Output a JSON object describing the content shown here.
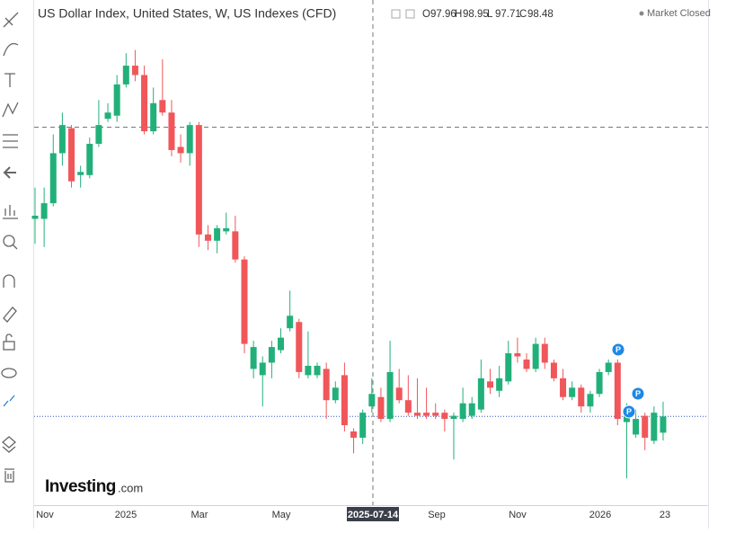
{
  "chart_data": {
    "type": "candlestick",
    "title": "US Dollar Index, United States, W, US Indexes (CFD)",
    "ohlc_labels": [
      "O",
      "H",
      "L",
      "C"
    ],
    "status": "Market Closed",
    "watermark": "Investing",
    "watermark_suffix": ".com",
    "crosshair_label": "2025-07-14",
    "x_labels": [
      "Nov",
      "2025",
      "Mar",
      "May",
      "Sep",
      "Nov",
      "2026",
      "23"
    ],
    "event_labels": [
      "P",
      "P",
      "P"
    ],
    "up_color": "#22b07a",
    "down_color": "#f0565a",
    "ylim": [
      95.7,
      111.8
    ],
    "open": [
      104.8,
      104.8,
      105.3,
      106.9,
      107.7,
      106.2,
      106.2,
      107.2,
      108.0,
      108.1,
      109.1,
      109.7,
      109.4,
      107.6,
      108.6,
      108.2,
      107.1,
      106.9,
      107.8,
      104.3,
      104.1,
      104.4,
      104.4,
      103.5,
      100.0,
      99.8,
      100.2,
      100.6,
      101.3,
      101.5,
      99.8,
      99.8,
      100.0,
      99.0,
      99.8,
      98.0,
      97.8,
      98.8,
      99.1,
      98.4,
      99.4,
      99.0,
      98.6,
      98.6,
      98.6,
      98.6,
      98.4,
      98.4,
      98.5,
      98.7,
      99.6,
      99.3,
      99.6,
      100.5,
      100.3,
      100.0,
      100.8,
      100.2,
      99.7,
      99.1,
      99.4,
      98.8,
      99.2,
      99.9,
      100.2,
      98.3,
      97.9,
      98.5,
      97.7,
      97.96
    ],
    "high": [
      105.8,
      105.8,
      107.5,
      108.2,
      107.8,
      106.5,
      107.4,
      108.6,
      108.5,
      109.4,
      110.1,
      110.2,
      109.7,
      109.0,
      109.9,
      108.6,
      107.5,
      107.9,
      107.9,
      104.6,
      104.6,
      105.0,
      104.9,
      103.6,
      100.9,
      100.4,
      100.9,
      101.3,
      102.5,
      101.6,
      101.2,
      100.2,
      100.2,
      99.6,
      100.2,
      98.1,
      98.7,
      99.7,
      99.4,
      100.9,
      100.0,
      99.8,
      99.7,
      99.4,
      98.9,
      98.7,
      98.6,
      99.4,
      99.1,
      100.3,
      100.0,
      100.1,
      100.9,
      101.0,
      100.5,
      101.0,
      101.0,
      100.3,
      100.0,
      99.6,
      99.5,
      99.3,
      100.0,
      100.3,
      100.3,
      98.9,
      98.7,
      98.6,
      98.8,
      98.95
    ],
    "low": [
      104.0,
      103.9,
      105.2,
      106.5,
      105.8,
      105.8,
      106.1,
      107.1,
      107.9,
      107.9,
      109.0,
      109.2,
      107.5,
      107.5,
      108.1,
      106.8,
      106.6,
      106.5,
      103.9,
      103.8,
      103.7,
      104.3,
      103.4,
      100.5,
      99.7,
      98.8,
      99.7,
      100.5,
      101.2,
      99.7,
      99.7,
      99.7,
      98.4,
      98.9,
      98.0,
      97.3,
      97.6,
      98.6,
      98.3,
      98.3,
      98.9,
      98.5,
      98.4,
      98.4,
      98.4,
      98.0,
      97.1,
      98.3,
      98.4,
      98.6,
      99.2,
      99.1,
      99.5,
      100.2,
      99.9,
      99.9,
      100.0,
      99.6,
      99.0,
      99.0,
      98.6,
      98.6,
      99.1,
      99.8,
      98.2,
      96.5,
      97.8,
      97.4,
      97.6,
      97.71
    ],
    "close": [
      104.9,
      105.3,
      106.9,
      107.8,
      106.0,
      106.3,
      107.2,
      107.8,
      108.2,
      109.1,
      109.7,
      109.4,
      107.6,
      108.5,
      108.2,
      107.0,
      106.9,
      107.8,
      104.3,
      104.1,
      104.5,
      104.5,
      103.5,
      100.8,
      100.7,
      100.2,
      100.7,
      101.0,
      101.7,
      99.9,
      100.1,
      100.1,
      99.0,
      99.4,
      98.2,
      97.8,
      98.6,
      99.2,
      98.4,
      99.9,
      99.0,
      98.6,
      98.5,
      98.5,
      98.5,
      98.4,
      98.5,
      98.9,
      98.9,
      99.7,
      99.4,
      99.7,
      100.5,
      100.4,
      100.0,
      100.8,
      100.2,
      99.7,
      99.1,
      99.4,
      98.8,
      99.2,
      99.9,
      100.2,
      98.4,
      98.7,
      98.4,
      97.8,
      98.6,
      98.48
    ]
  }
}
